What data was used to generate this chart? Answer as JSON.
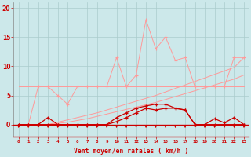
{
  "background_color": "#cce8ea",
  "grid_color": "#aacccc",
  "x_values": [
    0,
    1,
    2,
    3,
    4,
    5,
    6,
    7,
    8,
    9,
    10,
    11,
    12,
    13,
    14,
    15,
    16,
    17,
    18,
    19,
    20,
    21,
    22,
    23
  ],
  "line_spiky_y": [
    0.0,
    0.0,
    6.5,
    6.5,
    5.0,
    3.5,
    6.5,
    6.5,
    6.5,
    6.5,
    11.5,
    6.5,
    8.5,
    18.0,
    13.0,
    15.0,
    11.0,
    11.5,
    6.5,
    6.5,
    6.5,
    6.5,
    11.5,
    11.5
  ],
  "line_flat_upper_y": [
    6.5,
    6.5,
    6.5,
    6.5,
    6.5,
    6.5,
    6.5,
    6.5,
    6.5,
    6.5,
    6.5,
    6.5,
    6.5,
    6.5,
    6.5,
    6.5,
    6.5,
    6.5,
    6.5,
    6.5,
    6.5,
    6.5,
    6.5,
    6.5
  ],
  "line_trend1_y": [
    0.0,
    0.0,
    0.0,
    0.0,
    0.4,
    0.8,
    1.2,
    1.6,
    2.0,
    2.5,
    3.0,
    3.5,
    4.0,
    4.5,
    5.0,
    5.6,
    6.2,
    6.8,
    7.4,
    8.0,
    8.6,
    9.2,
    9.8,
    11.5
  ],
  "line_trend2_y": [
    0.0,
    0.0,
    0.0,
    0.0,
    0.2,
    0.4,
    0.7,
    1.0,
    1.4,
    1.8,
    2.2,
    2.6,
    3.0,
    3.4,
    3.8,
    4.3,
    4.8,
    5.3,
    5.8,
    6.3,
    6.8,
    7.3,
    7.8,
    8.5
  ],
  "line_dark1_y": [
    0.0,
    0.0,
    0.0,
    1.2,
    0.0,
    0.0,
    0.0,
    0.0,
    0.0,
    0.0,
    1.2,
    2.0,
    2.8,
    3.2,
    3.5,
    3.5,
    2.8,
    2.5,
    0.0,
    0.0,
    1.0,
    0.3,
    1.2,
    0.0
  ],
  "line_dark2_y": [
    0.0,
    0.0,
    0.0,
    0.0,
    0.0,
    0.0,
    0.0,
    0.0,
    0.0,
    0.0,
    0.5,
    1.2,
    2.0,
    2.8,
    2.5,
    2.8,
    2.8,
    2.5,
    0.0,
    0.0,
    0.0,
    0.0,
    0.0,
    0.0
  ],
  "line_dark3_y": [
    0.0,
    0.0,
    0.0,
    0.0,
    0.0,
    0.0,
    0.0,
    0.0,
    0.0,
    0.0,
    0.0,
    0.0,
    0.0,
    0.0,
    0.0,
    0.0,
    0.0,
    0.0,
    0.0,
    0.0,
    0.0,
    0.0,
    0.0,
    0.0
  ],
  "xlabel": "Vent moyen/en rafales ( km/h )",
  "ylabel_ticks": [
    0,
    5,
    10,
    15,
    20
  ],
  "x_ticks": [
    0,
    1,
    2,
    3,
    4,
    5,
    6,
    7,
    8,
    9,
    10,
    11,
    12,
    13,
    14,
    15,
    16,
    17,
    18,
    19,
    20,
    21,
    22,
    23
  ],
  "ylim": [
    0,
    21
  ],
  "xlim": [
    -0.5,
    23.5
  ],
  "line_color_dark": "#cc0000",
  "line_color_light": "#ff9999",
  "fig_width": 3.2,
  "fig_height": 2.0,
  "dpi": 100
}
